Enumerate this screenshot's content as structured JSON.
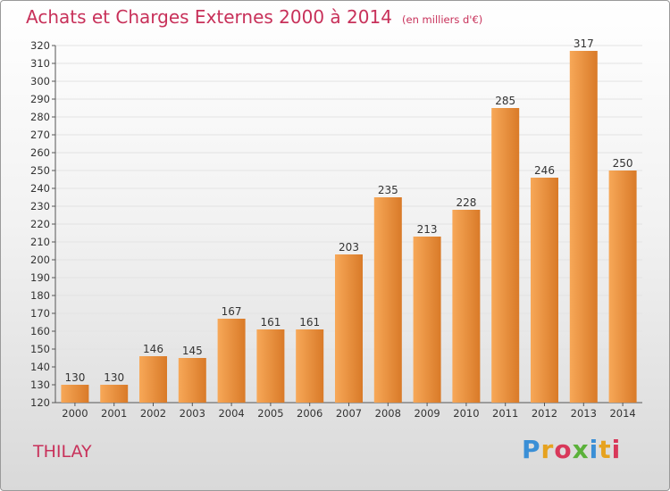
{
  "title": "Achats et Charges Externes 2000 à 2014",
  "unit": "(en milliers d'€)",
  "commune": "THILAY",
  "brand": "Proxiti",
  "colors": {
    "title": "#c8315a",
    "bar_light": "#f7a858",
    "bar_dark": "#d97a28",
    "axis_text": "#333333",
    "logo": [
      "#3a8fd6",
      "#e6a21f",
      "#d8385a",
      "#5bb13a",
      "#3a8fd6",
      "#e6a21f",
      "#d8385a"
    ]
  },
  "chart_data": {
    "type": "bar",
    "categories": [
      "2000",
      "2001",
      "2002",
      "2003",
      "2004",
      "2005",
      "2006",
      "2007",
      "2008",
      "2009",
      "2010",
      "2011",
      "2012",
      "2013",
      "2014"
    ],
    "values": [
      130,
      130,
      146,
      145,
      167,
      161,
      161,
      203,
      235,
      213,
      228,
      285,
      246,
      317,
      250
    ],
    "ylim": [
      120,
      320
    ],
    "yticks": [
      120,
      130,
      140,
      150,
      160,
      170,
      180,
      190,
      200,
      210,
      220,
      230,
      240,
      250,
      260,
      270,
      280,
      290,
      300,
      310,
      320
    ],
    "grid": true,
    "xlabel": "",
    "ylabel": ""
  }
}
